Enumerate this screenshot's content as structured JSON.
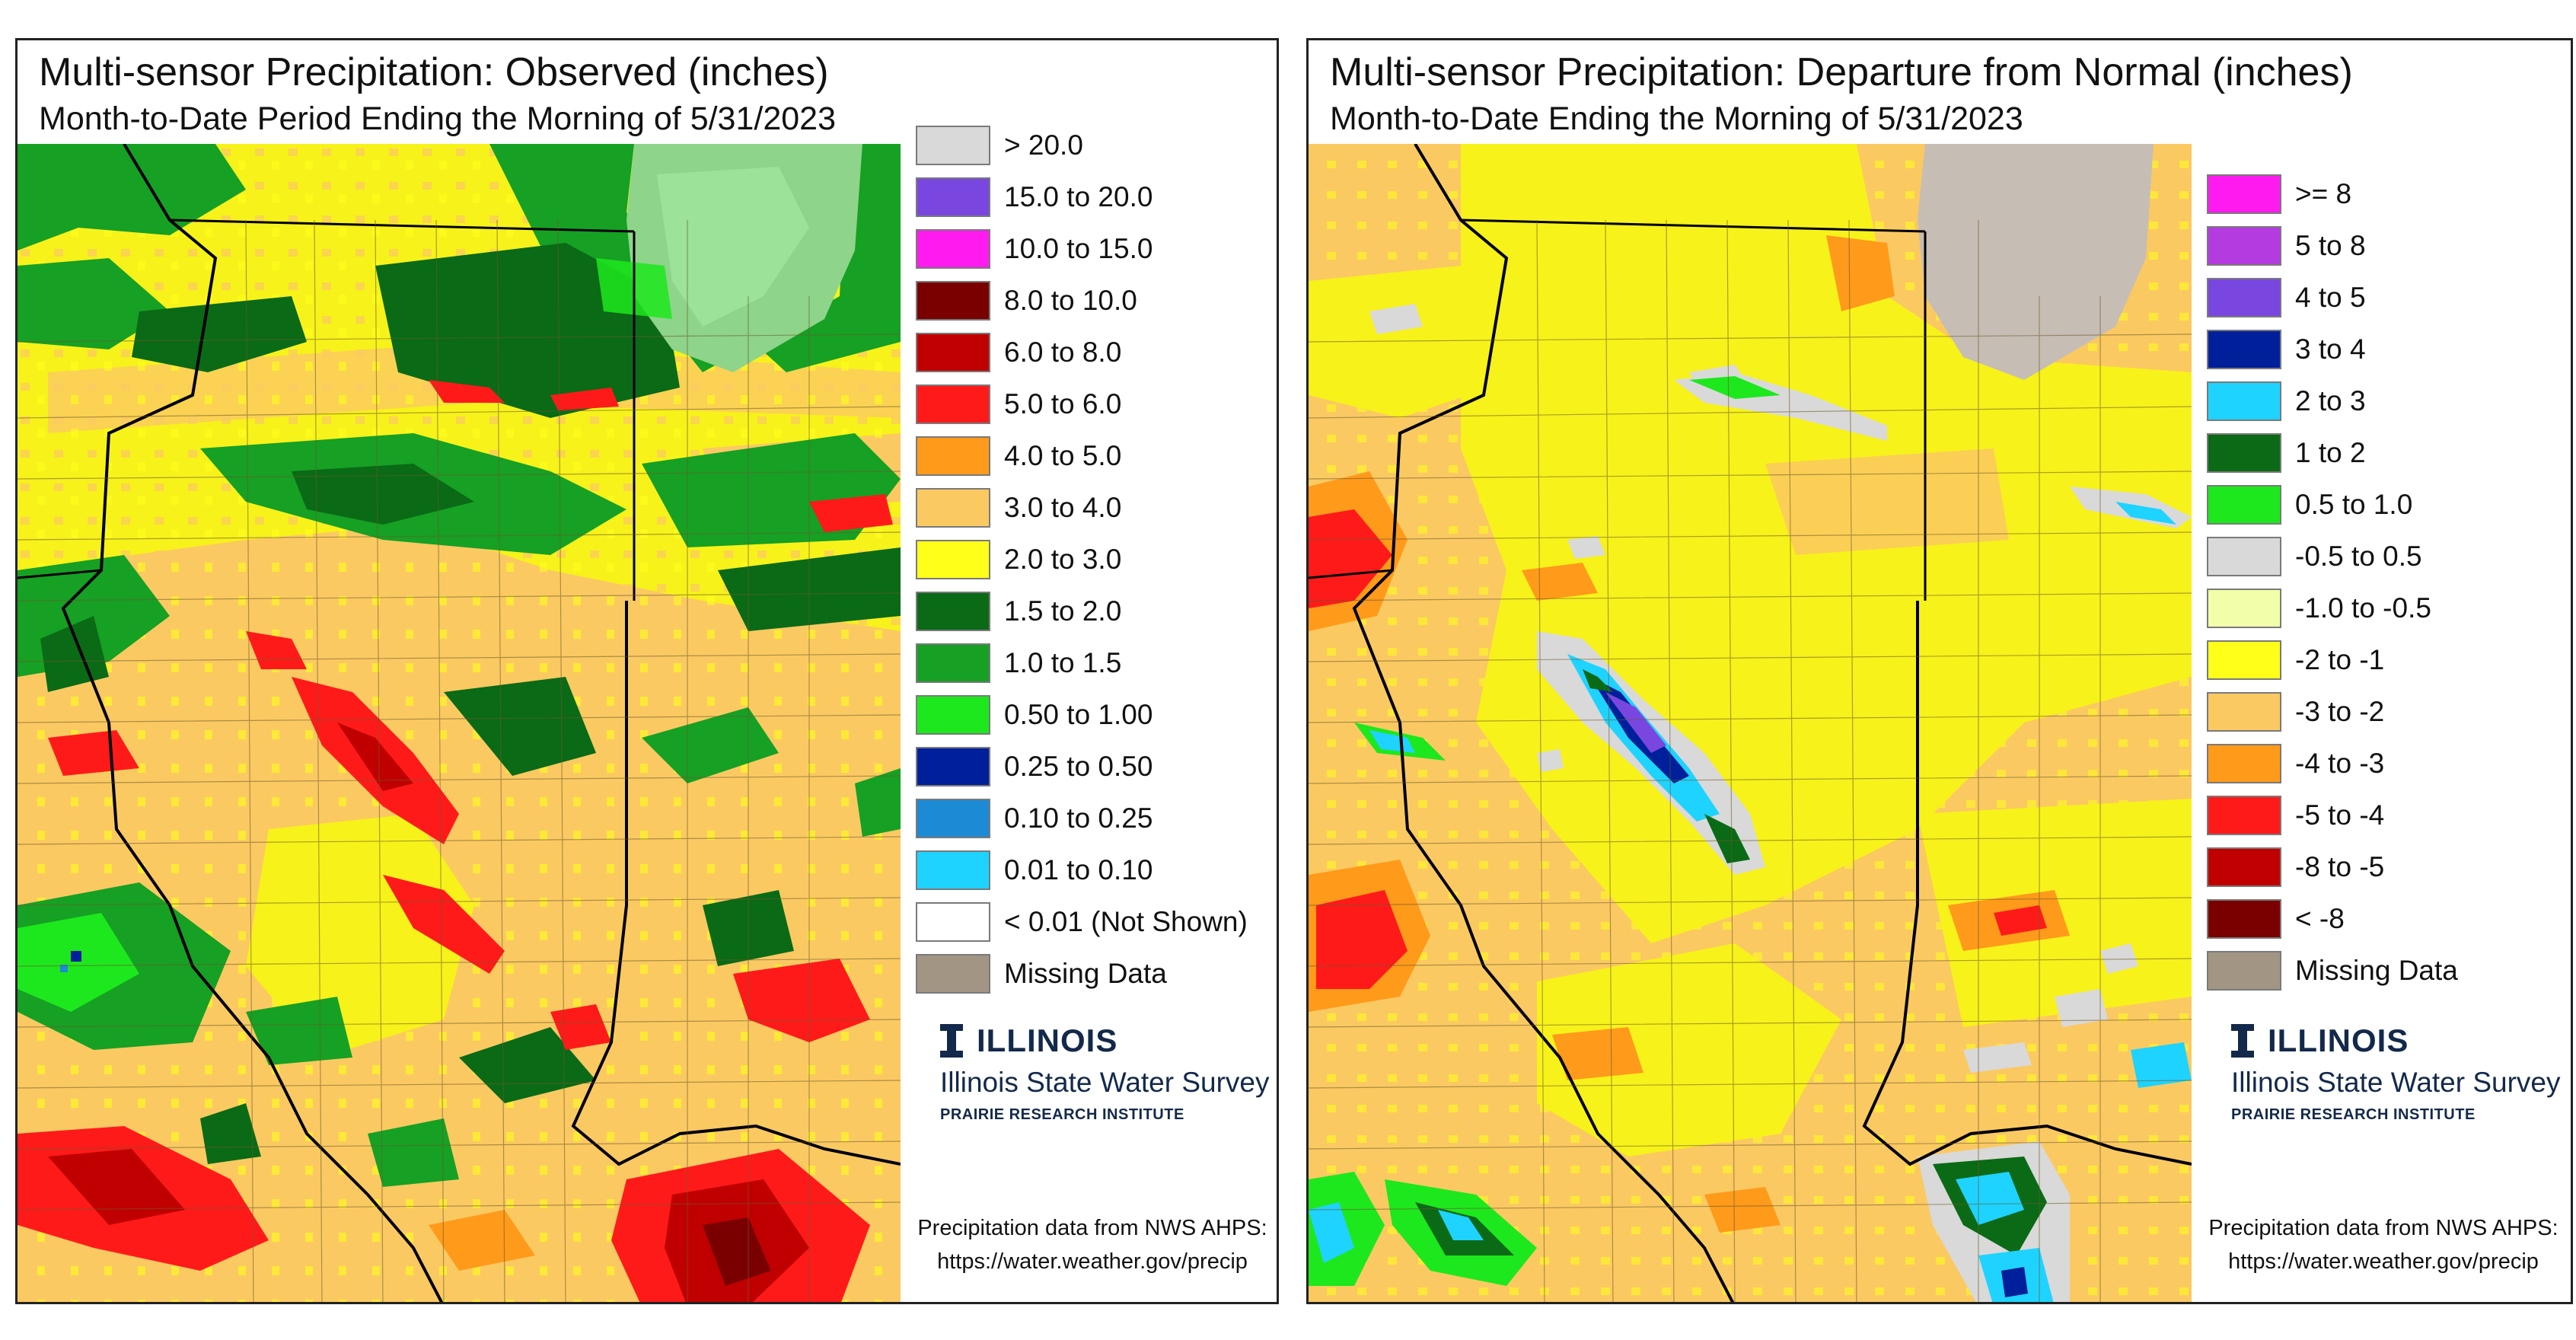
{
  "left_panel": {
    "title": "Multi-sensor Precipitation: Observed (inches)",
    "subtitle": "Month-to-Date Period Ending the Morning of 5/31/2023",
    "legend": [
      {
        "label": "> 20.0",
        "color": "#d9d9d9"
      },
      {
        "label": "15.0 to 20.0",
        "color": "#7a46e0"
      },
      {
        "label": "10.0 to 15.0",
        "color": "#ff1bf0"
      },
      {
        "label": "8.0 to 10.0",
        "color": "#7a0000"
      },
      {
        "label": "6.0 to 8.0",
        "color": "#c00000"
      },
      {
        "label": "5.0 to 6.0",
        "color": "#ff1a1a"
      },
      {
        "label": "4.0 to 5.0",
        "color": "#ff9a1a"
      },
      {
        "label": "3.0 to 4.0",
        "color": "#fbc962"
      },
      {
        "label": "2.0 to 3.0",
        "color": "#ffff1a"
      },
      {
        "label": "1.5 to 2.0",
        "color": "#0a6a16"
      },
      {
        "label": "1.0 to 1.5",
        "color": "#16a024"
      },
      {
        "label": "0.50 to 1.00",
        "color": "#1de81d"
      },
      {
        "label": "0.25 to 0.50",
        "color": "#001f9a"
      },
      {
        "label": "0.10 to 0.25",
        "color": "#1d8ad6"
      },
      {
        "label": "0.01 to 0.10",
        "color": "#1ed3ff"
      },
      {
        "label": "< 0.01 (Not Shown)",
        "color": "#ffffff"
      },
      {
        "label": "Missing Data",
        "color": "#a39584"
      }
    ],
    "logo": {
      "name": "ILLINOIS",
      "org": "Illinois State Water Survey",
      "institute": "PRAIRIE RESEARCH INSTITUTE"
    },
    "credit": {
      "line1": "Precipitation data from NWS AHPS:",
      "line2": "https://water.weather.gov/precip"
    }
  },
  "right_panel": {
    "title": "Multi-sensor Precipitation: Departure from Normal (inches)",
    "subtitle": "Month-to-Date Ending the Morning of 5/31/2023",
    "legend": [
      {
        "label": ">= 8",
        "color": "#ff1bf0"
      },
      {
        "label": "5 to 8",
        "color": "#b43be0"
      },
      {
        "label": "4 to 5",
        "color": "#7a46e0"
      },
      {
        "label": "3 to 4",
        "color": "#001f9a"
      },
      {
        "label": "2 to 3",
        "color": "#1ed3ff"
      },
      {
        "label": "1 to 2",
        "color": "#0a6a16"
      },
      {
        "label": "0.5 to 1.0",
        "color": "#1de81d"
      },
      {
        "label": "-0.5 to 0.5",
        "color": "#d9d9d9"
      },
      {
        "label": "-1.0 to -0.5",
        "color": "#f2ffa8"
      },
      {
        "label": "-2 to -1",
        "color": "#ffff1a"
      },
      {
        "label": "-3 to -2",
        "color": "#fbc962"
      },
      {
        "label": "-4 to -3",
        "color": "#ff9a1a"
      },
      {
        "label": "-5 to -4",
        "color": "#ff1a1a"
      },
      {
        "label": "-8 to -5",
        "color": "#c00000"
      },
      {
        "label": "< -8",
        "color": "#7a0000"
      },
      {
        "label": "Missing Data",
        "color": "#a39584"
      }
    ],
    "logo": {
      "name": "ILLINOIS",
      "org": "Illinois State Water Survey",
      "institute": "PRAIRIE RESEARCH INSTITUTE"
    },
    "credit": {
      "line1": "Precipitation data from NWS AHPS:",
      "line2": "https://water.weather.gov/precip"
    }
  }
}
